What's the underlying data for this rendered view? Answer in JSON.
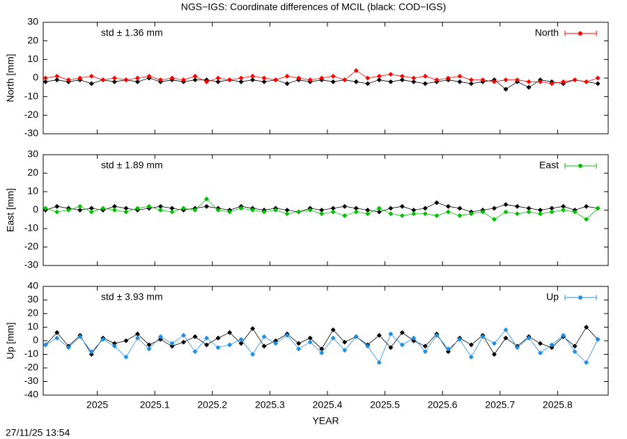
{
  "title": "NGS−IGS: Coordinate differences of MCIL (black: COD−IGS)",
  "timestamp": "27/11/25 13:54",
  "chart_data": [
    {
      "type": "line",
      "ylabel": "North [mm]",
      "annotation": "std ± 1.36 mm",
      "legend": "top-right",
      "xlim": [
        2024.906,
        2025.888
      ],
      "ylim": [
        -30,
        30
      ],
      "yticks": [
        -30,
        -20,
        -10,
        0,
        10,
        20,
        30
      ],
      "x": [
        2024.91,
        2024.93,
        2024.95,
        2024.97,
        2024.99,
        2025.01,
        2025.03,
        2025.05,
        2025.07,
        2025.09,
        2025.11,
        2025.13,
        2025.15,
        2025.17,
        2025.19,
        2025.21,
        2025.23,
        2025.25,
        2025.27,
        2025.29,
        2025.31,
        2025.33,
        2025.35,
        2025.37,
        2025.39,
        2025.41,
        2025.43,
        2025.45,
        2025.47,
        2025.49,
        2025.51,
        2025.53,
        2025.55,
        2025.57,
        2025.59,
        2025.61,
        2025.63,
        2025.65,
        2025.67,
        2025.69,
        2025.71,
        2025.73,
        2025.75,
        2025.77,
        2025.79,
        2025.81,
        2025.83,
        2025.85,
        2025.87
      ],
      "series": [
        {
          "name": "North",
          "color": "#ff0000",
          "values": [
            0,
            1,
            -1,
            0,
            1,
            -1,
            0,
            -1,
            0,
            1,
            -1,
            0,
            -1,
            1,
            -2,
            0,
            -1,
            0,
            1,
            0,
            -1,
            1,
            0,
            -1,
            0,
            1,
            -1,
            4,
            0,
            1,
            2,
            1,
            0,
            1,
            -1,
            0,
            1,
            -1,
            -1,
            -2,
            -1,
            -1,
            -2,
            -2,
            -3,
            -2,
            -1,
            -2,
            0
          ]
        },
        {
          "color": "#000000",
          "values": [
            -2,
            -1,
            -2,
            -1,
            -3,
            -1,
            -2,
            -1,
            -2,
            0,
            -2,
            -1,
            -2,
            -1,
            -1,
            -2,
            -1,
            -2,
            -1,
            -2,
            -1,
            -3,
            -1,
            -2,
            -1,
            -2,
            -1,
            -2,
            -3,
            -1,
            -2,
            -1,
            -2,
            -3,
            -2,
            -1,
            -2,
            -3,
            -2,
            -1,
            -6,
            -2,
            -5,
            -1,
            -2,
            -3,
            -1,
            -2,
            -3
          ]
        }
      ]
    },
    {
      "type": "line",
      "ylabel": "East [mm]",
      "annotation": "std ± 1.89 mm",
      "legend": "top-right",
      "xlim": [
        2024.906,
        2025.888
      ],
      "ylim": [
        -30,
        30
      ],
      "yticks": [
        -30,
        -20,
        -10,
        0,
        10,
        20,
        30
      ],
      "x": [
        2024.91,
        2024.93,
        2024.95,
        2024.97,
        2024.99,
        2025.01,
        2025.03,
        2025.05,
        2025.07,
        2025.09,
        2025.11,
        2025.13,
        2025.15,
        2025.17,
        2025.19,
        2025.21,
        2025.23,
        2025.25,
        2025.27,
        2025.29,
        2025.31,
        2025.33,
        2025.35,
        2025.37,
        2025.39,
        2025.41,
        2025.43,
        2025.45,
        2025.47,
        2025.49,
        2025.51,
        2025.53,
        2025.55,
        2025.57,
        2025.59,
        2025.61,
        2025.63,
        2025.65,
        2025.67,
        2025.69,
        2025.71,
        2025.73,
        2025.75,
        2025.77,
        2025.79,
        2025.81,
        2025.83,
        2025.85,
        2025.87
      ],
      "series": [
        {
          "name": "East",
          "color": "#00c000",
          "values": [
            1,
            -1,
            0,
            2,
            -1,
            1,
            0,
            -1,
            1,
            2,
            0,
            -1,
            1,
            0,
            6,
            0,
            -1,
            1,
            0,
            -1,
            0,
            -2,
            -1,
            0,
            -2,
            -1,
            -3,
            -1,
            -2,
            1,
            -2,
            -3,
            -2,
            -2,
            -3,
            -1,
            -3,
            -2,
            -1,
            -5,
            -1,
            -2,
            -1,
            -2,
            -1,
            0,
            -1,
            -5,
            1
          ]
        },
        {
          "color": "#000000",
          "values": [
            0,
            2,
            1,
            0,
            1,
            0,
            2,
            1,
            0,
            1,
            2,
            1,
            0,
            1,
            2,
            1,
            0,
            2,
            1,
            0,
            1,
            0,
            -1,
            1,
            0,
            1,
            2,
            1,
            0,
            -1,
            1,
            2,
            0,
            1,
            4,
            2,
            1,
            -1,
            0,
            1,
            3,
            2,
            1,
            0,
            1,
            2,
            0,
            2,
            1
          ]
        }
      ]
    },
    {
      "type": "line",
      "ylabel": "Up [mm]",
      "annotation": "std ± 3.93 mm",
      "legend": "top-right",
      "xlabel": "YEAR",
      "xlim": [
        2024.906,
        2025.888
      ],
      "ylim": [
        -40,
        40
      ],
      "yticks": [
        -40,
        -30,
        -20,
        -10,
        0,
        10,
        20,
        30,
        40
      ],
      "xticks": [
        2025,
        2025.1,
        2025.2,
        2025.3,
        2025.4,
        2025.5,
        2025.6,
        2025.7,
        2025.8
      ],
      "x": [
        2024.91,
        2024.93,
        2024.95,
        2024.97,
        2024.99,
        2025.01,
        2025.03,
        2025.05,
        2025.07,
        2025.09,
        2025.11,
        2025.13,
        2025.15,
        2025.17,
        2025.19,
        2025.21,
        2025.23,
        2025.25,
        2025.27,
        2025.29,
        2025.31,
        2025.33,
        2025.35,
        2025.37,
        2025.39,
        2025.41,
        2025.43,
        2025.45,
        2025.47,
        2025.49,
        2025.51,
        2025.53,
        2025.55,
        2025.57,
        2025.59,
        2025.61,
        2025.63,
        2025.65,
        2025.67,
        2025.69,
        2025.71,
        2025.73,
        2025.75,
        2025.77,
        2025.79,
        2025.81,
        2025.83,
        2025.85,
        2025.87
      ],
      "series": [
        {
          "name": "Up",
          "color": "#1e8fe6",
          "values": [
            -3,
            2,
            -5,
            3,
            -8,
            1,
            -4,
            -12,
            2,
            -6,
            3,
            -2,
            4,
            -8,
            2,
            -5,
            -3,
            1,
            -10,
            3,
            -2,
            4,
            -6,
            -1,
            -9,
            2,
            -7,
            3,
            -4,
            -16,
            5,
            -3,
            2,
            -8,
            4,
            -6,
            1,
            -12,
            3,
            -2,
            8,
            -5,
            2,
            -9,
            -3,
            4,
            -8,
            -16,
            1
          ]
        },
        {
          "color": "#000000",
          "values": [
            -3,
            6,
            -4,
            4,
            -10,
            2,
            -2,
            0,
            5,
            -3,
            1,
            -4,
            -1,
            3,
            -3,
            2,
            6,
            -2,
            9,
            -4,
            0,
            5,
            -2,
            2,
            -6,
            8,
            -1,
            3,
            -3,
            4,
            -5,
            6,
            0,
            -4,
            5,
            -8,
            2,
            -3,
            4,
            -10,
            2,
            -4,
            3,
            -2,
            -5,
            3,
            -4,
            10,
            1
          ]
        }
      ]
    }
  ]
}
